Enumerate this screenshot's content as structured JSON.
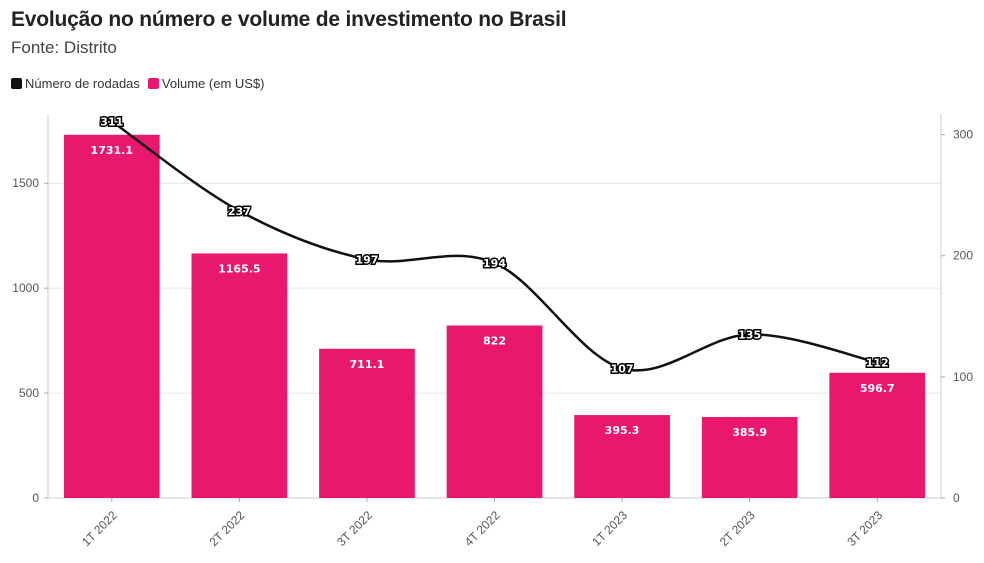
{
  "header": {
    "title": "Evolução no número e volume de investimento no Brasil",
    "subtitle": "Fonte: Distrito"
  },
  "legend": [
    {
      "label": "Número de rodadas",
      "color": "#111111"
    },
    {
      "label": "Volume (em US$)",
      "color": "#e8186e"
    }
  ],
  "chart_data": {
    "type": "bar",
    "categories": [
      "1T 2022",
      "2T 2022",
      "3T 2022",
      "4T 2022",
      "1T 2023",
      "2T 2023",
      "3T 2023"
    ],
    "series": [
      {
        "name": "Volume (em US$)",
        "kind": "bar",
        "axis": "left",
        "color": "#e8186e",
        "values": [
          1731.1,
          1165.5,
          711.1,
          822,
          395.3,
          385.9,
          596.7
        ],
        "labels": [
          "1731.1",
          "1165.5",
          "711.1",
          "822",
          "395.3",
          "385.9",
          "596.7"
        ]
      },
      {
        "name": "Número de rodadas",
        "kind": "line",
        "axis": "right",
        "color": "#111111",
        "values": [
          311,
          237,
          197,
          194,
          107,
          135,
          112
        ],
        "labels": [
          "311",
          "237",
          "197",
          "194",
          "107",
          "135",
          "112"
        ]
      }
    ],
    "y_left": {
      "min": 0,
      "max": 1830,
      "ticks": [
        0,
        500,
        1000,
        1500
      ],
      "tick_labels": [
        "0",
        "500",
        "1000",
        "1500"
      ]
    },
    "y_right": {
      "min": 0,
      "max": 317,
      "ticks": [
        0,
        100,
        200,
        300
      ],
      "tick_labels": [
        "0",
        "100",
        "200",
        "300"
      ]
    },
    "grid": true,
    "legend_position": "top-left"
  }
}
